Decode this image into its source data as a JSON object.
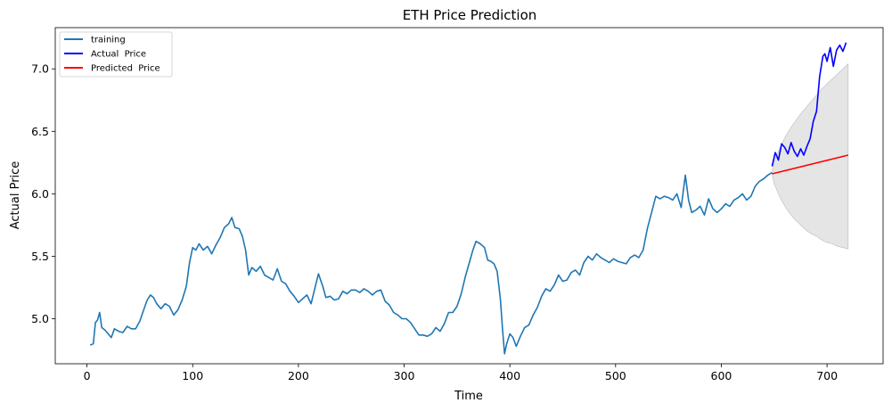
{
  "chart_data": {
    "type": "line",
    "title": "ETH Price Prediction",
    "xlabel": "Time",
    "ylabel": "Actual Price",
    "xlim": [
      -30,
      753
    ],
    "ylim": [
      4.64,
      7.33
    ],
    "xticks": [
      0,
      100,
      200,
      300,
      400,
      500,
      600,
      700
    ],
    "yticks": [
      5.0,
      5.5,
      6.0,
      6.5,
      7.0
    ],
    "ytick_labels": [
      "5.0",
      "5.5",
      "6.0",
      "6.5",
      "7.0"
    ],
    "grid": false,
    "legend": {
      "placement": "top-left"
    },
    "series": [
      {
        "name": "training",
        "color": "#1f77b4",
        "points": [
          [
            3,
            4.79
          ],
          [
            6,
            4.8
          ],
          [
            8,
            4.97
          ],
          [
            10,
            4.99
          ],
          [
            12,
            5.05
          ],
          [
            14,
            4.93
          ],
          [
            17,
            4.91
          ],
          [
            20,
            4.88
          ],
          [
            23,
            4.85
          ],
          [
            26,
            4.92
          ],
          [
            30,
            4.9
          ],
          [
            34,
            4.89
          ],
          [
            38,
            4.94
          ],
          [
            42,
            4.92
          ],
          [
            46,
            4.92
          ],
          [
            50,
            4.98
          ],
          [
            54,
            5.08
          ],
          [
            57,
            5.15
          ],
          [
            60,
            5.19
          ],
          [
            63,
            5.17
          ],
          [
            66,
            5.12
          ],
          [
            70,
            5.08
          ],
          [
            74,
            5.12
          ],
          [
            78,
            5.1
          ],
          [
            82,
            5.03
          ],
          [
            86,
            5.07
          ],
          [
            90,
            5.15
          ],
          [
            94,
            5.26
          ],
          [
            97,
            5.45
          ],
          [
            100,
            5.57
          ],
          [
            103,
            5.55
          ],
          [
            106,
            5.6
          ],
          [
            110,
            5.55
          ],
          [
            114,
            5.58
          ],
          [
            118,
            5.52
          ],
          [
            122,
            5.59
          ],
          [
            126,
            5.65
          ],
          [
            130,
            5.73
          ],
          [
            134,
            5.76
          ],
          [
            137,
            5.81
          ],
          [
            140,
            5.73
          ],
          [
            144,
            5.72
          ],
          [
            147,
            5.66
          ],
          [
            150,
            5.55
          ],
          [
            153,
            5.35
          ],
          [
            156,
            5.41
          ],
          [
            160,
            5.38
          ],
          [
            164,
            5.42
          ],
          [
            168,
            5.35
          ],
          [
            172,
            5.33
          ],
          [
            176,
            5.31
          ],
          [
            180,
            5.4
          ],
          [
            184,
            5.3
          ],
          [
            188,
            5.28
          ],
          [
            192,
            5.22
          ],
          [
            196,
            5.18
          ],
          [
            200,
            5.13
          ],
          [
            204,
            5.16
          ],
          [
            208,
            5.19
          ],
          [
            212,
            5.12
          ],
          [
            216,
            5.26
          ],
          [
            219,
            5.36
          ],
          [
            223,
            5.26
          ],
          [
            226,
            5.17
          ],
          [
            230,
            5.18
          ],
          [
            234,
            5.15
          ],
          [
            238,
            5.16
          ],
          [
            242,
            5.22
          ],
          [
            246,
            5.2
          ],
          [
            250,
            5.23
          ],
          [
            254,
            5.23
          ],
          [
            258,
            5.21
          ],
          [
            262,
            5.24
          ],
          [
            266,
            5.22
          ],
          [
            270,
            5.19
          ],
          [
            274,
            5.22
          ],
          [
            278,
            5.23
          ],
          [
            282,
            5.14
          ],
          [
            286,
            5.11
          ],
          [
            290,
            5.05
          ],
          [
            294,
            5.03
          ],
          [
            298,
            5.0
          ],
          [
            302,
            5.0
          ],
          [
            306,
            4.97
          ],
          [
            310,
            4.92
          ],
          [
            314,
            4.87
          ],
          [
            318,
            4.87
          ],
          [
            322,
            4.86
          ],
          [
            326,
            4.88
          ],
          [
            330,
            4.93
          ],
          [
            334,
            4.9
          ],
          [
            338,
            4.96
          ],
          [
            342,
            5.05
          ],
          [
            346,
            5.05
          ],
          [
            350,
            5.1
          ],
          [
            354,
            5.2
          ],
          [
            358,
            5.34
          ],
          [
            362,
            5.46
          ],
          [
            365,
            5.55
          ],
          [
            368,
            5.62
          ],
          [
            372,
            5.6
          ],
          [
            376,
            5.57
          ],
          [
            379,
            5.47
          ],
          [
            382,
            5.46
          ],
          [
            385,
            5.44
          ],
          [
            388,
            5.38
          ],
          [
            391,
            5.16
          ],
          [
            393,
            4.92
          ],
          [
            395,
            4.72
          ],
          [
            397,
            4.8
          ],
          [
            400,
            4.88
          ],
          [
            403,
            4.85
          ],
          [
            406,
            4.78
          ],
          [
            410,
            4.86
          ],
          [
            414,
            4.93
          ],
          [
            418,
            4.95
          ],
          [
            422,
            5.03
          ],
          [
            426,
            5.09
          ],
          [
            430,
            5.18
          ],
          [
            434,
            5.24
          ],
          [
            438,
            5.22
          ],
          [
            442,
            5.27
          ],
          [
            446,
            5.35
          ],
          [
            450,
            5.3
          ],
          [
            454,
            5.31
          ],
          [
            458,
            5.37
          ],
          [
            462,
            5.39
          ],
          [
            466,
            5.35
          ],
          [
            470,
            5.45
          ],
          [
            474,
            5.5
          ],
          [
            478,
            5.47
          ],
          [
            482,
            5.52
          ],
          [
            486,
            5.49
          ],
          [
            490,
            5.47
          ],
          [
            494,
            5.45
          ],
          [
            498,
            5.48
          ],
          [
            502,
            5.46
          ],
          [
            506,
            5.45
          ],
          [
            510,
            5.44
          ],
          [
            514,
            5.49
          ],
          [
            518,
            5.51
          ],
          [
            522,
            5.49
          ],
          [
            526,
            5.55
          ],
          [
            530,
            5.72
          ],
          [
            534,
            5.85
          ],
          [
            538,
            5.98
          ],
          [
            542,
            5.96
          ],
          [
            546,
            5.98
          ],
          [
            550,
            5.97
          ],
          [
            554,
            5.95
          ],
          [
            558,
            6.0
          ],
          [
            562,
            5.89
          ],
          [
            566,
            6.15
          ],
          [
            569,
            5.95
          ],
          [
            572,
            5.85
          ],
          [
            576,
            5.87
          ],
          [
            580,
            5.9
          ],
          [
            584,
            5.83
          ],
          [
            588,
            5.96
          ],
          [
            592,
            5.88
          ],
          [
            596,
            5.85
          ],
          [
            600,
            5.88
          ],
          [
            604,
            5.92
          ],
          [
            608,
            5.9
          ],
          [
            612,
            5.95
          ],
          [
            616,
            5.97
          ],
          [
            620,
            6.0
          ],
          [
            624,
            5.95
          ],
          [
            628,
            5.98
          ],
          [
            632,
            6.06
          ],
          [
            636,
            6.1
          ],
          [
            640,
            6.12
          ],
          [
            644,
            6.15
          ],
          [
            648,
            6.17
          ]
        ]
      },
      {
        "name": "Actual  Price",
        "color": "#0000ff",
        "points": [
          [
            648,
            6.22
          ],
          [
            651,
            6.33
          ],
          [
            654,
            6.27
          ],
          [
            657,
            6.4
          ],
          [
            660,
            6.37
          ],
          [
            663,
            6.32
          ],
          [
            666,
            6.41
          ],
          [
            669,
            6.34
          ],
          [
            672,
            6.3
          ],
          [
            675,
            6.36
          ],
          [
            678,
            6.31
          ],
          [
            681,
            6.38
          ],
          [
            684,
            6.44
          ],
          [
            687,
            6.58
          ],
          [
            690,
            6.66
          ],
          [
            693,
            6.94
          ],
          [
            696,
            7.1
          ],
          [
            698,
            7.12
          ],
          [
            700,
            7.06
          ],
          [
            703,
            7.17
          ],
          [
            706,
            7.02
          ],
          [
            709,
            7.15
          ],
          [
            712,
            7.19
          ],
          [
            715,
            7.14
          ],
          [
            718,
            7.21
          ]
        ]
      },
      {
        "name": "Predicted  Price",
        "color": "#ff0000",
        "points": [
          [
            648,
            6.16
          ],
          [
            720,
            6.31
          ]
        ]
      }
    ],
    "confidence_band": {
      "color": "#d3d3d3",
      "x": [
        648,
        650,
        655,
        660,
        665,
        670,
        675,
        680,
        685,
        690,
        695,
        700,
        705,
        710,
        715,
        720
      ],
      "upper": [
        6.17,
        6.26,
        6.36,
        6.45,
        6.52,
        6.58,
        6.64,
        6.69,
        6.74,
        6.79,
        6.84,
        6.88,
        6.92,
        6.96,
        7.0,
        7.04
      ],
      "lower": [
        6.16,
        6.08,
        5.98,
        5.9,
        5.84,
        5.79,
        5.75,
        5.71,
        5.68,
        5.66,
        5.63,
        5.61,
        5.6,
        5.58,
        5.57,
        5.56
      ]
    }
  }
}
